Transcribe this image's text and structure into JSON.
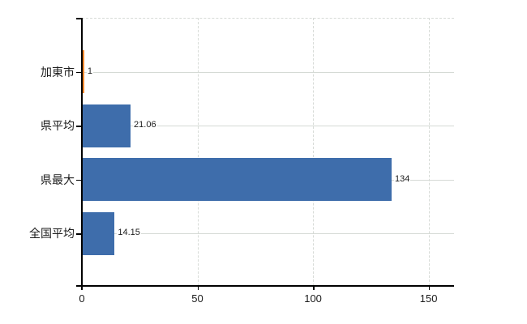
{
  "chart_data": {
    "type": "bar",
    "orientation": "horizontal",
    "title": "",
    "xlabel": "",
    "ylabel": "",
    "categories": [
      "加東市",
      "県平均",
      "県最大",
      "全国平均"
    ],
    "values": [
      1,
      21.06,
      134,
      14.15
    ],
    "value_labels": [
      "1",
      "21.06",
      "134",
      "14.15"
    ],
    "bar_colors": [
      "#F0882F",
      "#3E6DAB",
      "#3E6DAB",
      "#3E6DAB"
    ],
    "x_tick_values": [
      0,
      50,
      100,
      150
    ],
    "x_tick_labels": [
      "0",
      "50",
      "100",
      "150"
    ],
    "xlim": [
      0,
      161
    ],
    "grid": true,
    "legend": "none"
  },
  "colors": {
    "highlight_bar": "#F0882F",
    "default_bar": "#3E6DAB",
    "gridline": "#D7DBD7",
    "row_gridline": "#D5DAD5",
    "axis": "#000000",
    "text": "#1C1C1C",
    "marker_dash": "#8FB7E0"
  }
}
